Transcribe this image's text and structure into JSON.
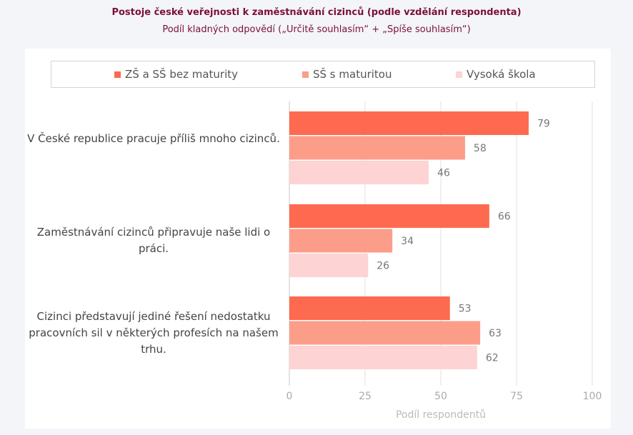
{
  "chart_data": {
    "type": "bar",
    "orientation": "horizontal",
    "title": "Postoje české veřejnosti k zaměstnávání cizinců (podle vzdělání respondenta)",
    "subtitle": "Podíl kladných odpovědí („Určitě souhlasím“ + „Spíše souhlasím“)",
    "categories": [
      "V České republice pracuje příliš mnoho cizinců.",
      "Zaměstnávání cizinců připravuje naše lidi o práci.",
      "Cizinci představují jediné řešení nedostatku pracovních sil v některých profesích na našem trhu."
    ],
    "series": [
      {
        "name": "ZŠ a SŠ bez maturity",
        "color": "#fd6a4f",
        "values": [
          79,
          66,
          53
        ]
      },
      {
        "name": "SŠ s maturitou",
        "color": "#fc9d8a",
        "values": [
          58,
          34,
          63
        ]
      },
      {
        "name": "Vysoká škola",
        "color": "#fdd3d3",
        "values": [
          46,
          26,
          62
        ]
      }
    ],
    "xlabel": "Podíl respondentů",
    "xlim": [
      0,
      100
    ],
    "xticks": [
      0,
      25,
      50,
      75,
      100
    ],
    "grid": true,
    "legend_position": "top"
  }
}
